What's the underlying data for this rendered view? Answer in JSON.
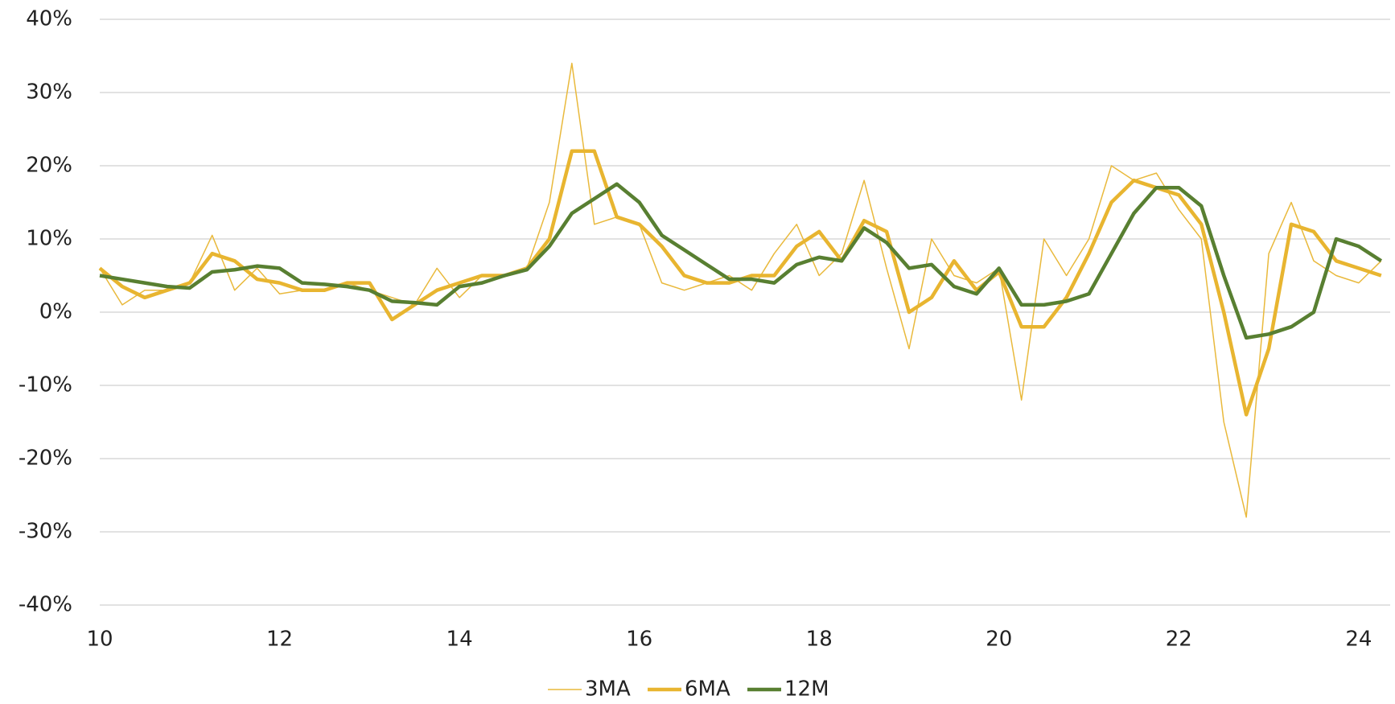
{
  "chart_data": {
    "type": "line",
    "x": [
      10,
      10.25,
      10.5,
      10.75,
      11,
      11.25,
      11.5,
      11.75,
      12,
      12.25,
      12.5,
      12.75,
      13,
      13.25,
      13.5,
      13.75,
      14,
      14.25,
      14.5,
      14.75,
      15,
      15.25,
      15.5,
      15.75,
      16,
      16.25,
      16.5,
      16.75,
      17,
      17.25,
      17.5,
      17.75,
      18,
      18.25,
      18.5,
      18.75,
      19,
      19.25,
      19.5,
      19.75,
      20,
      20.25,
      20.5,
      20.75,
      21,
      21.25,
      21.5,
      21.75,
      22,
      22.25,
      22.5,
      22.75,
      23,
      23.25,
      23.5,
      23.75,
      24,
      24.25
    ],
    "series": [
      {
        "name": "3MA",
        "color": "#e9b93c",
        "line_width": 1.5,
        "values": [
          6,
          1,
          3,
          3,
          4,
          10.5,
          3,
          6,
          2.5,
          3,
          3,
          4,
          3,
          2,
          1,
          6,
          2,
          5,
          5,
          6,
          15,
          34,
          12,
          13,
          12,
          4,
          3,
          4,
          5,
          3,
          8,
          12,
          5,
          8,
          18,
          6,
          -5,
          10,
          5,
          4,
          6,
          -12,
          10,
          5,
          10,
          20,
          18,
          19,
          14,
          10,
          -15,
          -28,
          8,
          15,
          7,
          5,
          4,
          7
        ]
      },
      {
        "name": "6MA",
        "color": "#e8b530",
        "line_width": 4.5,
        "values": [
          6,
          3.5,
          2,
          3,
          4,
          8,
          7,
          4.5,
          4,
          3,
          3,
          4,
          4,
          -1,
          1,
          3,
          4,
          5,
          5,
          6,
          10,
          22,
          22,
          13,
          12,
          9,
          5,
          4,
          4,
          5,
          5,
          9,
          11,
          7,
          12.5,
          11,
          0,
          2,
          7,
          3,
          5.5,
          -2,
          -2,
          2,
          8,
          15,
          18,
          17,
          16,
          12,
          0,
          -14,
          -5,
          12,
          11,
          7,
          6,
          5
        ]
      },
      {
        "name": "12M",
        "color": "#587f31",
        "line_width": 4.5,
        "values": [
          5,
          4.5,
          4,
          3.5,
          3.3,
          5.5,
          5.8,
          6.3,
          6,
          4,
          3.8,
          3.5,
          3,
          1.5,
          1.3,
          1,
          3.5,
          4,
          5,
          5.8,
          9,
          13.5,
          15.5,
          17.5,
          15,
          10.5,
          8.5,
          6.5,
          4.5,
          4.5,
          4,
          6.5,
          7.5,
          7,
          11.5,
          9.5,
          6,
          6.5,
          3.5,
          2.5,
          6,
          1,
          1,
          1.5,
          2.5,
          8,
          13.5,
          17,
          17,
          14.5,
          5,
          -3.5,
          -3,
          -2,
          0,
          10,
          9,
          7
        ]
      }
    ],
    "xlim": [
      10,
      24.35
    ],
    "xticks": [
      10,
      12,
      14,
      16,
      18,
      20,
      22,
      24
    ],
    "ylim": [
      -40,
      40
    ],
    "yticks": [
      {
        "value": -40,
        "label": "-40%"
      },
      {
        "value": -30,
        "label": "-30%"
      },
      {
        "value": -20,
        "label": "-20%"
      },
      {
        "value": -10,
        "label": "-10%"
      },
      {
        "value": 0,
        "label": "0%"
      },
      {
        "value": 10,
        "label": "10%"
      },
      {
        "value": 20,
        "label": "20%"
      },
      {
        "value": 30,
        "label": "30%"
      },
      {
        "value": 40,
        "label": "40%"
      }
    ],
    "grid": true,
    "legend": "bottom"
  }
}
